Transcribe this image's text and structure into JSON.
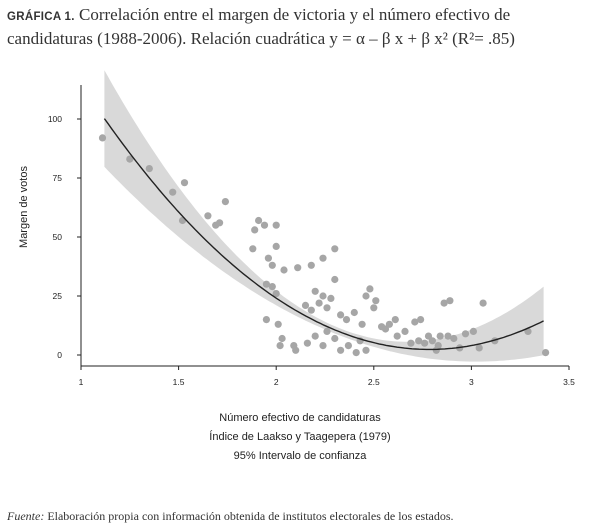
{
  "title": {
    "label": "GRÁFICA 1.",
    "text_line1": "Correlación entre el margen de victoria y el número efectivo de",
    "text_line2": "candidaturas (1988-2006). Relación cuadrática y = α – β x + β x² (R²= .85)"
  },
  "source": {
    "label": "Fuente:",
    "text": "Elaboración propia con información obtenida de institutos electorales de los estados."
  },
  "chart_data": {
    "type": "scatter",
    "ylabel": "Margen de votos",
    "xlabel_lines": [
      "Número efectivo de candidaturas",
      "Índice de Laakso y Taagepera (1979)",
      "95% Intervalo de confianza"
    ],
    "xlim": [
      1,
      3.5
    ],
    "ylim": [
      0,
      100
    ],
    "xticks": [
      1,
      1.5,
      2,
      2.5,
      3,
      3.5
    ],
    "xtick_labels": [
      "1",
      "1.5",
      "2",
      "2.5",
      "3",
      "3.5"
    ],
    "yticks": [
      0,
      25,
      50,
      75,
      100
    ],
    "ytick_labels": [
      "0",
      "25",
      "50",
      "75",
      "100"
    ],
    "grid": false,
    "point_color": "#a6a6a6",
    "fit_color": "#222222",
    "ci_color": "#d9d9d9",
    "fit": {
      "type": "quadratic",
      "x_range": [
        1.12,
        3.37
      ],
      "coefficients": {
        "a": 276.1,
        "b": -196.6,
        "c": 35.3
      },
      "ci_halfwidth": {
        "base": 1.5,
        "scale": 16
      }
    },
    "points": [
      [
        1.11,
        92
      ],
      [
        1.25,
        83
      ],
      [
        1.35,
        79
      ],
      [
        1.47,
        69
      ],
      [
        1.53,
        73
      ],
      [
        1.52,
        57
      ],
      [
        1.65,
        59
      ],
      [
        1.69,
        55
      ],
      [
        1.71,
        56
      ],
      [
        1.74,
        65
      ],
      [
        1.89,
        53
      ],
      [
        1.91,
        57
      ],
      [
        1.94,
        55
      ],
      [
        2.0,
        55
      ],
      [
        1.96,
        41
      ],
      [
        2.0,
        46
      ],
      [
        1.88,
        45
      ],
      [
        1.98,
        38
      ],
      [
        2.04,
        36
      ],
      [
        2.11,
        37
      ],
      [
        2.18,
        38
      ],
      [
        2.24,
        41
      ],
      [
        2.3,
        45
      ],
      [
        1.95,
        30
      ],
      [
        1.98,
        29
      ],
      [
        2.0,
        26
      ],
      [
        2.15,
        21
      ],
      [
        2.18,
        19
      ],
      [
        2.2,
        27
      ],
      [
        2.22,
        22
      ],
      [
        2.24,
        25
      ],
      [
        2.26,
        20
      ],
      [
        2.28,
        24
      ],
      [
        2.3,
        32
      ],
      [
        2.33,
        17
      ],
      [
        2.36,
        15
      ],
      [
        2.4,
        18
      ],
      [
        2.44,
        13
      ],
      [
        2.46,
        25
      ],
      [
        2.48,
        28
      ],
      [
        2.51,
        23
      ],
      [
        2.5,
        20
      ],
      [
        2.54,
        12
      ],
      [
        2.56,
        11
      ],
      [
        2.58,
        13
      ],
      [
        2.61,
        15
      ],
      [
        1.95,
        15
      ],
      [
        2.01,
        13
      ],
      [
        2.03,
        7
      ],
      [
        2.09,
        4
      ],
      [
        2.1,
        2
      ],
      [
        2.16,
        5
      ],
      [
        2.2,
        8
      ],
      [
        2.24,
        4
      ],
      [
        2.26,
        10
      ],
      [
        2.3,
        7
      ],
      [
        2.33,
        2
      ],
      [
        2.37,
        4
      ],
      [
        2.41,
        1
      ],
      [
        2.43,
        6
      ],
      [
        2.46,
        2
      ],
      [
        2.02,
        4
      ],
      [
        2.62,
        8
      ],
      [
        2.66,
        10
      ],
      [
        2.69,
        5
      ],
      [
        2.71,
        14
      ],
      [
        2.74,
        15
      ],
      [
        2.76,
        5
      ],
      [
        2.78,
        8
      ],
      [
        2.8,
        6
      ],
      [
        2.82,
        2
      ],
      [
        2.84,
        8
      ],
      [
        2.86,
        22
      ],
      [
        2.89,
        23
      ],
      [
        2.91,
        7
      ],
      [
        2.94,
        3
      ],
      [
        2.97,
        9
      ],
      [
        3.01,
        10
      ],
      [
        3.04,
        3
      ],
      [
        3.06,
        22
      ],
      [
        3.12,
        6
      ],
      [
        3.29,
        10
      ],
      [
        3.38,
        1
      ],
      [
        2.83,
        4
      ],
      [
        2.73,
        6
      ],
      [
        2.88,
        8
      ]
    ]
  }
}
